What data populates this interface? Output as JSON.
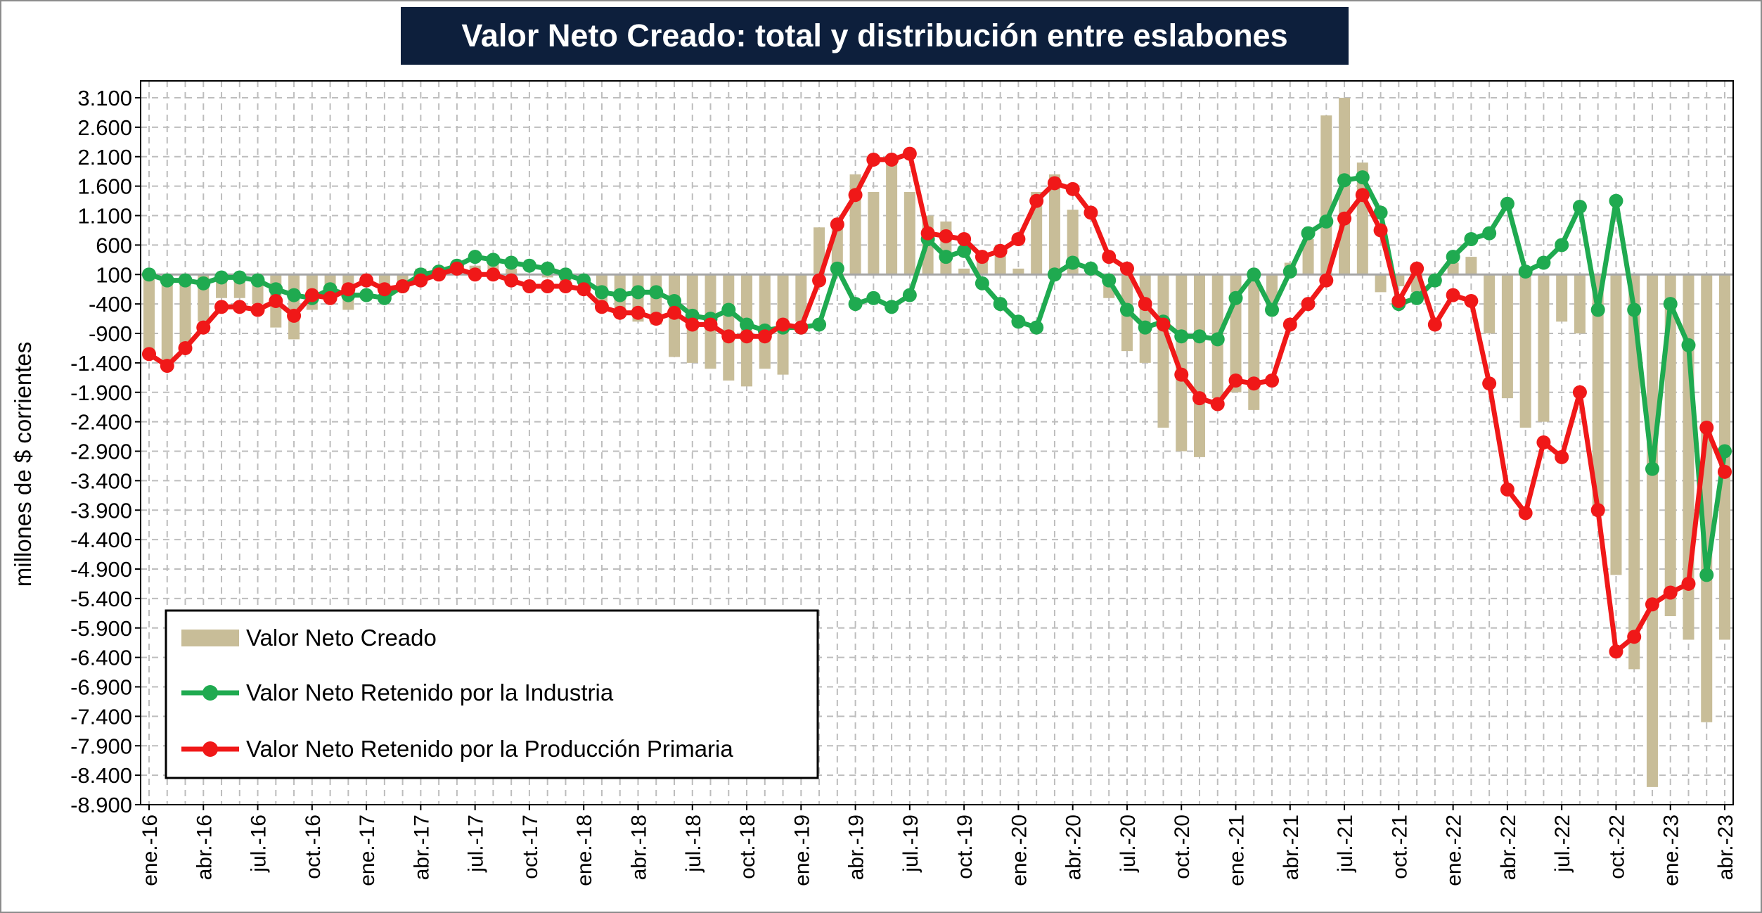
{
  "chart_data": {
    "type": "bar+line",
    "title": "Valor Neto Creado: total y distribución entre eslabones",
    "ylabel": "millones de $ corrientes",
    "xlabel": "",
    "ylim": [
      -8900,
      3100
    ],
    "yticks": [
      3100,
      2600,
      2100,
      1600,
      1100,
      600,
      100,
      -400,
      -900,
      -1400,
      -1900,
      -2400,
      -2900,
      -3400,
      -3900,
      -4400,
      -4900,
      -5400,
      -5900,
      -6400,
      -6900,
      -7400,
      -7900,
      -8400,
      -8900
    ],
    "ytick_labels": [
      "3.100",
      "2.600",
      "2.100",
      "1.600",
      "1.100",
      "600",
      "100",
      "-400",
      "-900",
      "-1.400",
      "-1.900",
      "-2.400",
      "-2.900",
      "-3.400",
      "-3.900",
      "-4.400",
      "-4.900",
      "-5.400",
      "-5.900",
      "-6.400",
      "-6.900",
      "-7.400",
      "-7.900",
      "-8.400",
      "-8.900"
    ],
    "grid": true,
    "legend_position": "bottom-left",
    "xtick_labels": [
      "ene.-16",
      "abr.-16",
      "jul.-16",
      "oct.-16",
      "ene.-17",
      "abr.-17",
      "jul.-17",
      "oct.-17",
      "ene.-18",
      "abr.-18",
      "jul.-18",
      "oct.-18",
      "ene.-19",
      "abr.-19",
      "jul.-19",
      "oct.-19",
      "ene.-20",
      "abr.-20",
      "jul.-20",
      "oct.-20",
      "ene.-21",
      "abr.-21",
      "jul.-21",
      "oct.-21",
      "ene.-22",
      "abr.-22",
      "jul.-22",
      "oct.-22",
      "ene.-23",
      "abr.-23"
    ],
    "categories": [
      "ene.-16",
      "feb.-16",
      "mar.-16",
      "abr.-16",
      "may.-16",
      "jun.-16",
      "jul.-16",
      "ago.-16",
      "sep.-16",
      "oct.-16",
      "nov.-16",
      "dic.-16",
      "ene.-17",
      "feb.-17",
      "mar.-17",
      "abr.-17",
      "may.-17",
      "jun.-17",
      "jul.-17",
      "ago.-17",
      "sep.-17",
      "oct.-17",
      "nov.-17",
      "dic.-17",
      "ene.-18",
      "feb.-18",
      "mar.-18",
      "abr.-18",
      "may.-18",
      "jun.-18",
      "jul.-18",
      "ago.-18",
      "sep.-18",
      "oct.-18",
      "nov.-18",
      "dic.-18",
      "ene.-19",
      "feb.-19",
      "mar.-19",
      "abr.-19",
      "may.-19",
      "jun.-19",
      "jul.-19",
      "ago.-19",
      "sep.-19",
      "oct.-19",
      "nov.-19",
      "dic.-19",
      "ene.-20",
      "feb.-20",
      "mar.-20",
      "abr.-20",
      "may.-20",
      "jun.-20",
      "jul.-20",
      "ago.-20",
      "sep.-20",
      "oct.-20",
      "nov.-20",
      "dic.-20",
      "ene.-21",
      "feb.-21",
      "mar.-21",
      "abr.-21",
      "may.-21",
      "jun.-21",
      "jul.-21",
      "ago.-21",
      "sep.-21",
      "oct.-21",
      "nov.-21",
      "dic.-21",
      "ene.-22",
      "feb.-22",
      "mar.-22",
      "abr.-22",
      "may.-22",
      "jun.-22",
      "jul.-22",
      "ago.-22",
      "sep.-22",
      "oct.-22",
      "nov.-22",
      "dic.-22",
      "ene.-23",
      "feb.-23",
      "mar.-23",
      "abr.-23"
    ],
    "series": [
      {
        "name": "Valor Neto Creado",
        "kind": "bar",
        "color": "#c8bd98",
        "values": [
          -1200,
          -1500,
          -1100,
          -700,
          -300,
          -300,
          -400,
          -800,
          -1000,
          -500,
          -300,
          -500,
          -50,
          -150,
          -100,
          200,
          200,
          300,
          250,
          300,
          200,
          100,
          50,
          -100,
          -200,
          -450,
          -500,
          -700,
          -750,
          -1300,
          -1400,
          -1500,
          -1700,
          -1800,
          -1500,
          -1600,
          -700,
          900,
          1000,
          1800,
          1500,
          2000,
          1500,
          1100,
          1000,
          200,
          350,
          600,
          200,
          1500,
          1800,
          1200,
          200,
          -300,
          -1200,
          -1400,
          -2500,
          -2900,
          -3000,
          -2000,
          -1900,
          -2200,
          -500,
          300,
          700,
          2800,
          3100,
          2000,
          -200,
          -100,
          -200,
          -100,
          300,
          400,
          -900,
          -2000,
          -2500,
          -2400,
          -700,
          -900,
          -4000,
          -5000,
          -6600,
          -8600,
          -5700,
          -6100,
          -7500,
          -6100
        ]
      },
      {
        "name": "Valor Neto Retenido por la Industria",
        "kind": "line",
        "color": "#1faa50",
        "values": [
          100,
          0,
          0,
          -50,
          50,
          50,
          0,
          -150,
          -250,
          -300,
          -150,
          -250,
          -250,
          -300,
          -100,
          100,
          150,
          250,
          400,
          350,
          300,
          250,
          200,
          100,
          0,
          -200,
          -250,
          -200,
          -200,
          -350,
          -600,
          -650,
          -500,
          -750,
          -850,
          -800,
          -800,
          -750,
          200,
          -400,
          -300,
          -450,
          -250,
          700,
          400,
          500,
          -50,
          -400,
          -700,
          -800,
          100,
          300,
          200,
          0,
          -500,
          -800,
          -700,
          -950,
          -950,
          -1000,
          -300,
          100,
          -500,
          150,
          800,
          1000,
          1700,
          1750,
          1150,
          -400,
          -300,
          0,
          400,
          700,
          800,
          1300,
          150,
          300,
          600,
          1250,
          -500,
          1350,
          -500,
          -3200,
          -400,
          -1100,
          -5000,
          -2900
        ]
      },
      {
        "name": "Valor Neto Retenido por la Producción Primaria",
        "kind": "line",
        "color": "#f01818",
        "values": [
          -1250,
          -1450,
          -1150,
          -800,
          -450,
          -450,
          -500,
          -350,
          -600,
          -250,
          -300,
          -150,
          0,
          -150,
          -100,
          0,
          100,
          200,
          100,
          100,
          0,
          -100,
          -100,
          -100,
          -150,
          -450,
          -550,
          -550,
          -650,
          -550,
          -750,
          -750,
          -950,
          -950,
          -950,
          -750,
          -800,
          0,
          950,
          1450,
          2050,
          2050,
          2150,
          800,
          750,
          700,
          400,
          500,
          700,
          1350,
          1650,
          1550,
          1150,
          400,
          200,
          -400,
          -750,
          -1600,
          -2000,
          -2100,
          -1700,
          -1750,
          -1700,
          -750,
          -400,
          0,
          1050,
          1450,
          850,
          -350,
          200,
          -750,
          -250,
          -350,
          -1750,
          -3550,
          -3950,
          -2750,
          -3000,
          -1900,
          -3900,
          -6300,
          -6050,
          -5500,
          -5300,
          -5150,
          -2500,
          -3250
        ]
      }
    ]
  }
}
